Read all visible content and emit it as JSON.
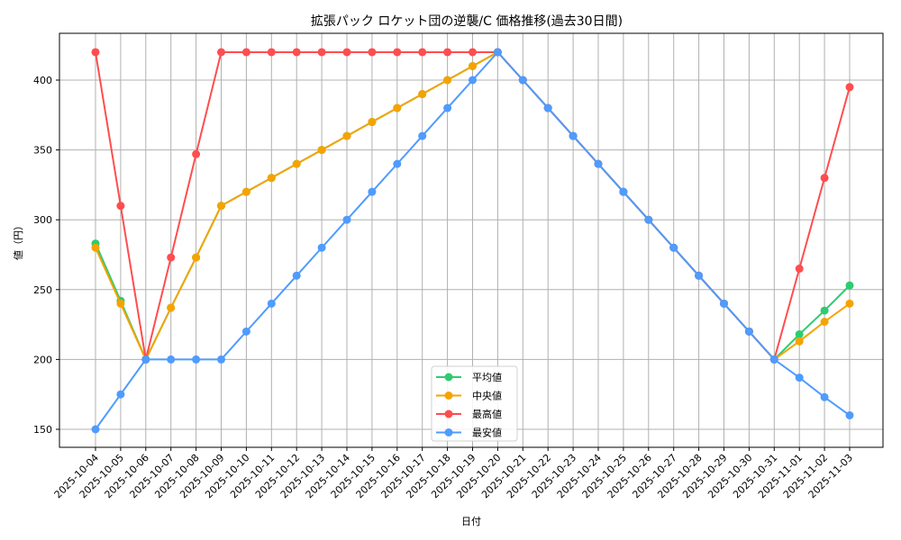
{
  "chart_data": {
    "type": "line",
    "title": "拡張パック ロケット団の逆襲/C 価格推移(過去30日間)",
    "xlabel": "日付",
    "ylabel": "値（円）",
    "ylim": [
      137,
      430
    ],
    "yticks": [
      150,
      200,
      250,
      300,
      350,
      400
    ],
    "grid": true,
    "legend_position": "lower center",
    "categories": [
      "2025-10-04",
      "2025-10-05",
      "2025-10-06",
      "2025-10-07",
      "2025-10-08",
      "2025-10-09",
      "2025-10-10",
      "2025-10-11",
      "2025-10-12",
      "2025-10-13",
      "2025-10-14",
      "2025-10-15",
      "2025-10-16",
      "2025-10-17",
      "2025-10-18",
      "2025-10-19",
      "2025-10-20",
      "2025-10-21",
      "2025-10-22",
      "2025-10-23",
      "2025-10-24",
      "2025-10-25",
      "2025-10-26",
      "2025-10-27",
      "2025-10-28",
      "2025-10-29",
      "2025-10-30",
      "2025-10-31",
      "2025-11-01",
      "2025-11-02",
      "2025-11-03"
    ],
    "series": [
      {
        "name": "平均値",
        "color": "#2ecc71",
        "values": [
          283,
          242,
          200,
          237,
          273,
          310,
          320,
          330,
          340,
          350,
          360,
          370,
          380,
          390,
          400,
          410,
          420,
          400,
          380,
          360,
          340,
          320,
          300,
          280,
          260,
          240,
          220,
          200,
          218,
          235,
          253
        ]
      },
      {
        "name": "中央値",
        "color": "#f5a300",
        "values": [
          280,
          240,
          200,
          237,
          273,
          310,
          320,
          330,
          340,
          350,
          360,
          370,
          380,
          390,
          400,
          410,
          420,
          400,
          380,
          360,
          340,
          320,
          300,
          280,
          260,
          240,
          220,
          200,
          213,
          227,
          240
        ]
      },
      {
        "name": "最高値",
        "color": "#ff4d4f",
        "values": [
          420,
          310,
          200,
          273,
          347,
          420,
          420,
          420,
          420,
          420,
          420,
          420,
          420,
          420,
          420,
          420,
          420,
          400,
          380,
          360,
          340,
          320,
          300,
          280,
          260,
          240,
          220,
          200,
          265,
          330,
          395
        ]
      },
      {
        "name": "最安値",
        "color": "#4f9bff",
        "values": [
          150,
          175,
          200,
          200,
          200,
          200,
          220,
          240,
          260,
          280,
          300,
          320,
          340,
          360,
          380,
          400,
          420,
          400,
          380,
          360,
          340,
          320,
          300,
          280,
          260,
          240,
          220,
          200,
          187,
          173,
          160
        ]
      }
    ]
  }
}
